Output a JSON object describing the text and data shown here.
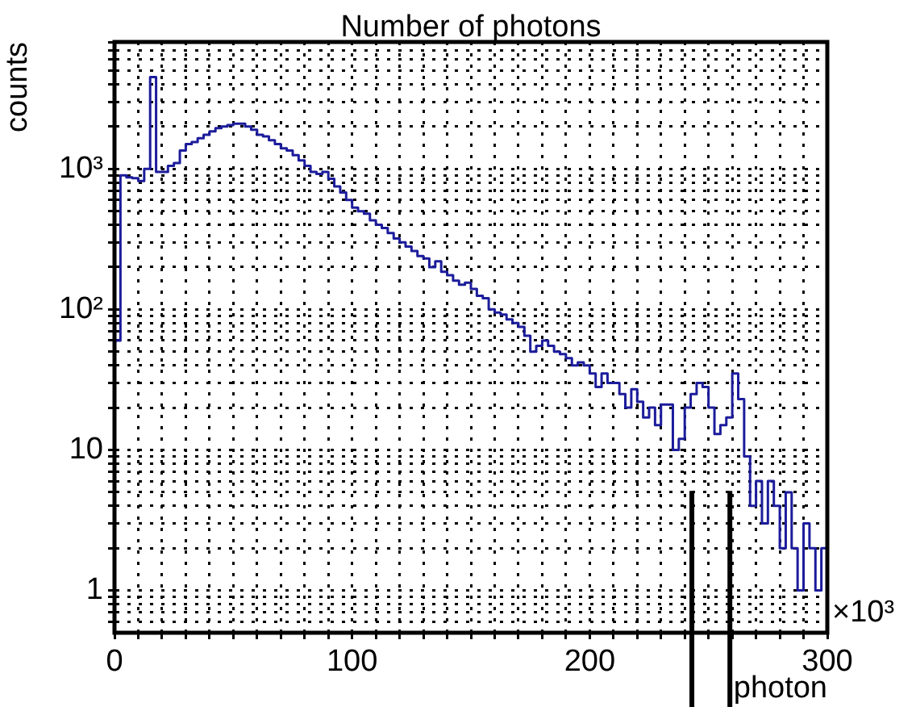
{
  "chart_data": {
    "type": "histogram",
    "title": "Number of photons",
    "xlabel": "photon",
    "ylabel": "counts",
    "annotations": [
      "×10³"
    ],
    "bins": [
      0,
      2.5,
      5,
      7.5,
      10,
      12.5,
      15,
      17.5,
      20,
      22.5,
      25,
      27.5,
      30,
      32.5,
      35,
      37.5,
      40,
      42.5,
      45,
      47.5,
      50,
      52.5,
      55,
      57.5,
      60,
      62.5,
      65,
      67.5,
      70,
      72.5,
      75,
      77.5,
      80,
      82.5,
      85,
      87.5,
      90,
      92.5,
      95,
      97.5,
      100,
      102.5,
      105,
      107.5,
      110,
      112.5,
      115,
      117.5,
      120,
      122.5,
      125,
      127.5,
      130,
      132.5,
      135,
      137.5,
      140,
      142.5,
      145,
      147.5,
      150,
      152.5,
      155,
      157.5,
      160,
      162.5,
      165,
      167.5,
      170,
      172.5,
      175,
      177.5,
      180,
      182.5,
      185,
      187.5,
      190,
      192.5,
      195,
      197.5,
      200,
      202.5,
      205,
      207.5,
      210,
      212.5,
      215,
      217.5,
      220,
      222.5,
      225,
      227.5,
      230,
      232.5,
      235,
      237.5,
      240,
      242.5,
      245,
      247.5,
      250,
      252.5,
      255,
      257.5,
      260,
      262.5,
      265,
      267.5,
      270,
      272.5,
      275,
      277.5,
      280,
      282.5,
      285,
      287.5,
      290,
      292.5,
      295,
      297.5,
      300
    ],
    "values": [
      60,
      900,
      870,
      860,
      820,
      1000,
      4500,
      950,
      950,
      1050,
      1100,
      1350,
      1500,
      1550,
      1650,
      1750,
      1850,
      1950,
      2000,
      2050,
      2100,
      2100,
      2000,
      1900,
      1750,
      1700,
      1600,
      1500,
      1400,
      1350,
      1250,
      1150,
      1050,
      950,
      920,
      950,
      850,
      750,
      680,
      600,
      530,
      500,
      480,
      430,
      400,
      380,
      350,
      320,
      300,
      280,
      260,
      240,
      230,
      200,
      220,
      185,
      175,
      160,
      150,
      155,
      140,
      125,
      120,
      100,
      95,
      92,
      85,
      80,
      75,
      65,
      50,
      55,
      60,
      55,
      50,
      48,
      45,
      40,
      42,
      40,
      35,
      28,
      35,
      30,
      30,
      25,
      20,
      27,
      22,
      17,
      20,
      15,
      21,
      21,
      10,
      12,
      20,
      25,
      30,
      28,
      20,
      13,
      15,
      17,
      35,
      23,
      9,
      4,
      6,
      3,
      6,
      4,
      2,
      5,
      2,
      1,
      3,
      2,
      1,
      2
    ],
    "color": "#1c1c9c",
    "log": "y",
    "grid": true,
    "xlim": [
      0,
      300
    ],
    "ylim": [
      0.5,
      8000
    ],
    "xticks": [
      0,
      {
        "value": 10,
        "label": null
      },
      {
        "value": 20,
        "label": null
      },
      {
        "value": 30,
        "label": null
      },
      {
        "value": 40,
        "label": null
      },
      {
        "value": 50,
        "label": null
      },
      {
        "value": 60,
        "label": null
      },
      {
        "value": 70,
        "label": null
      },
      {
        "value": 80,
        "label": null
      },
      {
        "value": 90,
        "label": null
      },
      100,
      {
        "value": 110,
        "label": null
      },
      {
        "value": 120,
        "label": null
      },
      {
        "value": 130,
        "label": null
      },
      {
        "value": 140,
        "label": null
      },
      {
        "value": 150,
        "label": null
      },
      {
        "value": 160,
        "label": null
      },
      {
        "value": 170,
        "label": null
      },
      {
        "value": 180,
        "label": null
      },
      {
        "value": 190,
        "label": null
      },
      200,
      {
        "value": 210,
        "label": null
      },
      {
        "value": 220,
        "label": null
      },
      {
        "value": 230,
        "label": null
      },
      {
        "value": 240,
        "label": null
      },
      {
        "value": 250,
        "label": null
      },
      {
        "value": 260,
        "label": null
      },
      {
        "value": 270,
        "label": null
      },
      {
        "value": 280,
        "label": null
      },
      {
        "value": 290,
        "label": null
      },
      300
    ],
    "yticks": [
      {
        "value": 0.6,
        "label": null
      },
      {
        "value": 0.7,
        "label": null
      },
      {
        "value": 0.8,
        "label": null
      },
      {
        "value": 0.9,
        "label": null
      },
      1,
      {
        "value": 2,
        "label": null
      },
      {
        "value": 3,
        "label": null
      },
      {
        "value": 4,
        "label": null
      },
      {
        "value": 5,
        "label": null
      },
      {
        "value": 6,
        "label": null
      },
      {
        "value": 7,
        "label": null
      },
      {
        "value": 8,
        "label": null
      },
      {
        "value": 9,
        "label": null
      },
      10,
      {
        "value": 20,
        "label": null
      },
      {
        "value": 30,
        "label": null
      },
      {
        "value": 40,
        "label": null
      },
      {
        "value": 50,
        "label": null
      },
      {
        "value": 60,
        "label": null
      },
      {
        "value": 70,
        "label": null
      },
      {
        "value": 80,
        "label": null
      },
      {
        "value": 90,
        "label": null
      },
      {
        "value": 100,
        "label": "10²"
      },
      {
        "value": 200,
        "label": null
      },
      {
        "value": 300,
        "label": null
      },
      {
        "value": 400,
        "label": null
      },
      {
        "value": 500,
        "label": null
      },
      {
        "value": 600,
        "label": null
      },
      {
        "value": 700,
        "label": null
      },
      {
        "value": 800,
        "label": null
      },
      {
        "value": 900,
        "label": null
      },
      {
        "value": 1000,
        "label": "10³"
      },
      {
        "value": 2000,
        "label": null
      },
      {
        "value": 3000,
        "label": null
      },
      {
        "value": 4000,
        "label": null
      },
      {
        "value": 5000,
        "label": null
      },
      {
        "value": 6000,
        "label": null
      },
      {
        "value": 7000,
        "label": null
      },
      {
        "value": 8000,
        "label": null
      }
    ],
    "ref_lines": [
      {
        "axis": "x",
        "value": 243,
        "color": "#000000"
      },
      {
        "axis": "x",
        "value": 259,
        "color": "#000000"
      }
    ]
  }
}
